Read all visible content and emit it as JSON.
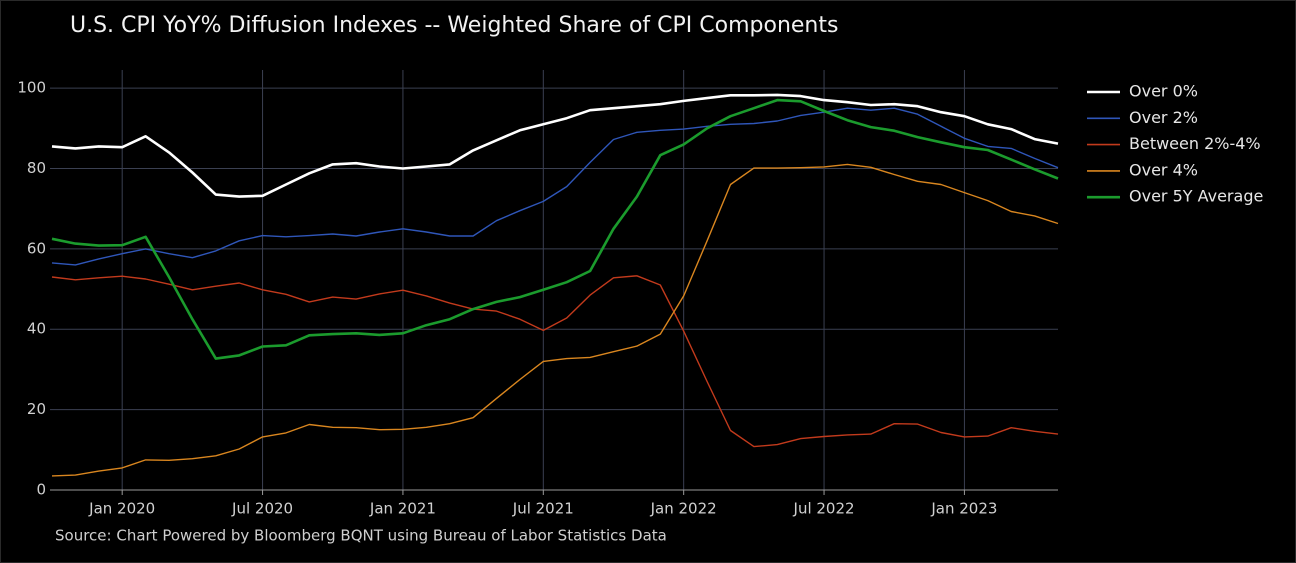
{
  "chart_data": {
    "type": "line",
    "title": "U.S. CPI YoY% Diffusion Indexes -- Weighted Share of CPI Components",
    "source": "Source: Chart Powered by Bloomberg BQNT using Bureau of Labor Statistics Data",
    "categories": [
      "Oct 2019",
      "Nov 2019",
      "Dec 2019",
      "Jan 2020",
      "Feb 2020",
      "Mar 2020",
      "Apr 2020",
      "May 2020",
      "Jun 2020",
      "Jul 2020",
      "Aug 2020",
      "Sep 2020",
      "Oct 2020",
      "Nov 2020",
      "Dec 2020",
      "Jan 2021",
      "Feb 2021",
      "Mar 2021",
      "Apr 2021",
      "May 2021",
      "Jun 2021",
      "Jul 2021",
      "Aug 2021",
      "Sep 2021",
      "Oct 2021",
      "Nov 2021",
      "Dec 2021",
      "Jan 2022",
      "Feb 2022",
      "Mar 2022",
      "Apr 2022",
      "May 2022",
      "Jun 2022",
      "Jul 2022",
      "Aug 2022",
      "Sep 2022",
      "Oct 2022",
      "Nov 2022",
      "Dec 2022",
      "Jan 2023",
      "Feb 2023",
      "Mar 2023",
      "Apr 2023",
      "May 2023"
    ],
    "xticks": [
      "Jan 2020",
      "Jul 2020",
      "Jan 2021",
      "Jul 2021",
      "Jan 2022",
      "Jul 2022",
      "Jan 2023"
    ],
    "ylim": [
      0,
      104.5
    ],
    "yticks": [
      0,
      20,
      40,
      60,
      80,
      100
    ],
    "grid": true,
    "legend": "right",
    "series": [
      {
        "name": "Over 0%",
        "color": "#ffffff",
        "values": [
          85.5,
          85,
          85.5,
          85.3,
          88,
          84,
          79,
          73.5,
          73,
          73.2,
          76,
          78.8,
          81,
          81.3,
          80.5,
          80,
          80.5,
          81,
          84.5,
          87,
          89.5,
          91,
          92.5,
          94.5,
          95,
          95.5,
          96,
          96.8,
          97.5,
          98.2,
          98.2,
          98.3,
          98,
          97,
          96.5,
          95.8,
          96,
          95.5,
          94,
          93,
          91,
          89.8,
          87.3,
          86.2
        ]
      },
      {
        "name": "Over 2%",
        "color": "#2f56b9",
        "values": [
          56.5,
          56,
          57.5,
          58.8,
          60,
          58.8,
          57.8,
          59.5,
          62,
          63.3,
          63,
          63.3,
          63.7,
          63.2,
          64.2,
          65,
          64.2,
          63.2,
          63.2,
          67,
          69.5,
          71.8,
          75.5,
          81.5,
          87.2,
          89,
          89.5,
          89.8,
          90.5,
          91,
          91.2,
          91.8,
          93.2,
          94,
          95,
          94.5,
          95,
          93.5,
          90.5,
          87.5,
          85.5,
          85,
          82.5,
          80.2
        ]
      },
      {
        "name": "Between 2%-4%",
        "color": "#c23a1c",
        "values": [
          53,
          52.3,
          52.8,
          53.2,
          52.5,
          51.2,
          49.8,
          50.7,
          51.5,
          49.8,
          48.7,
          46.8,
          48,
          47.5,
          48.8,
          49.7,
          48.3,
          46.5,
          45,
          44.5,
          42.5,
          39.7,
          42.8,
          48.5,
          52.8,
          53.3,
          51,
          39.5,
          27,
          14.8,
          10.8,
          11.3,
          12.8,
          13.3,
          13.7,
          13.9,
          16.5,
          16.4,
          14.3,
          13.2,
          13.4,
          15.5,
          14.6,
          13.9
        ]
      },
      {
        "name": "Over 4%",
        "color": "#d9861f",
        "values": [
          3.5,
          3.7,
          4.7,
          5.5,
          7.5,
          7.4,
          7.8,
          8.5,
          10.2,
          13.2,
          14.2,
          16.3,
          15.6,
          15.5,
          15,
          15.1,
          15.6,
          16.5,
          18,
          22.8,
          27.5,
          32,
          32.7,
          33,
          34.4,
          35.8,
          38.8,
          48.3,
          62,
          76,
          80.1,
          80.1,
          80.2,
          80.4,
          81,
          80.3,
          78.5,
          76.8,
          76,
          74,
          72,
          69.3,
          68.2,
          66.3
        ]
      },
      {
        "name": "Over 5Y Average",
        "color": "#1b9b2d",
        "values": [
          62.5,
          61.3,
          60.8,
          60.9,
          63,
          53,
          42.5,
          32.7,
          33.5,
          35.7,
          36,
          38.5,
          38.8,
          39,
          38.6,
          39,
          41,
          42.5,
          45,
          46.8,
          48,
          49.8,
          51.7,
          54.5,
          65,
          73,
          83.3,
          86,
          90,
          93,
          95,
          97,
          96.7,
          94.3,
          92,
          90.3,
          89.4,
          87.8,
          86.5,
          85.3,
          84.6,
          82.2,
          79.8,
          77.5
        ]
      }
    ]
  }
}
